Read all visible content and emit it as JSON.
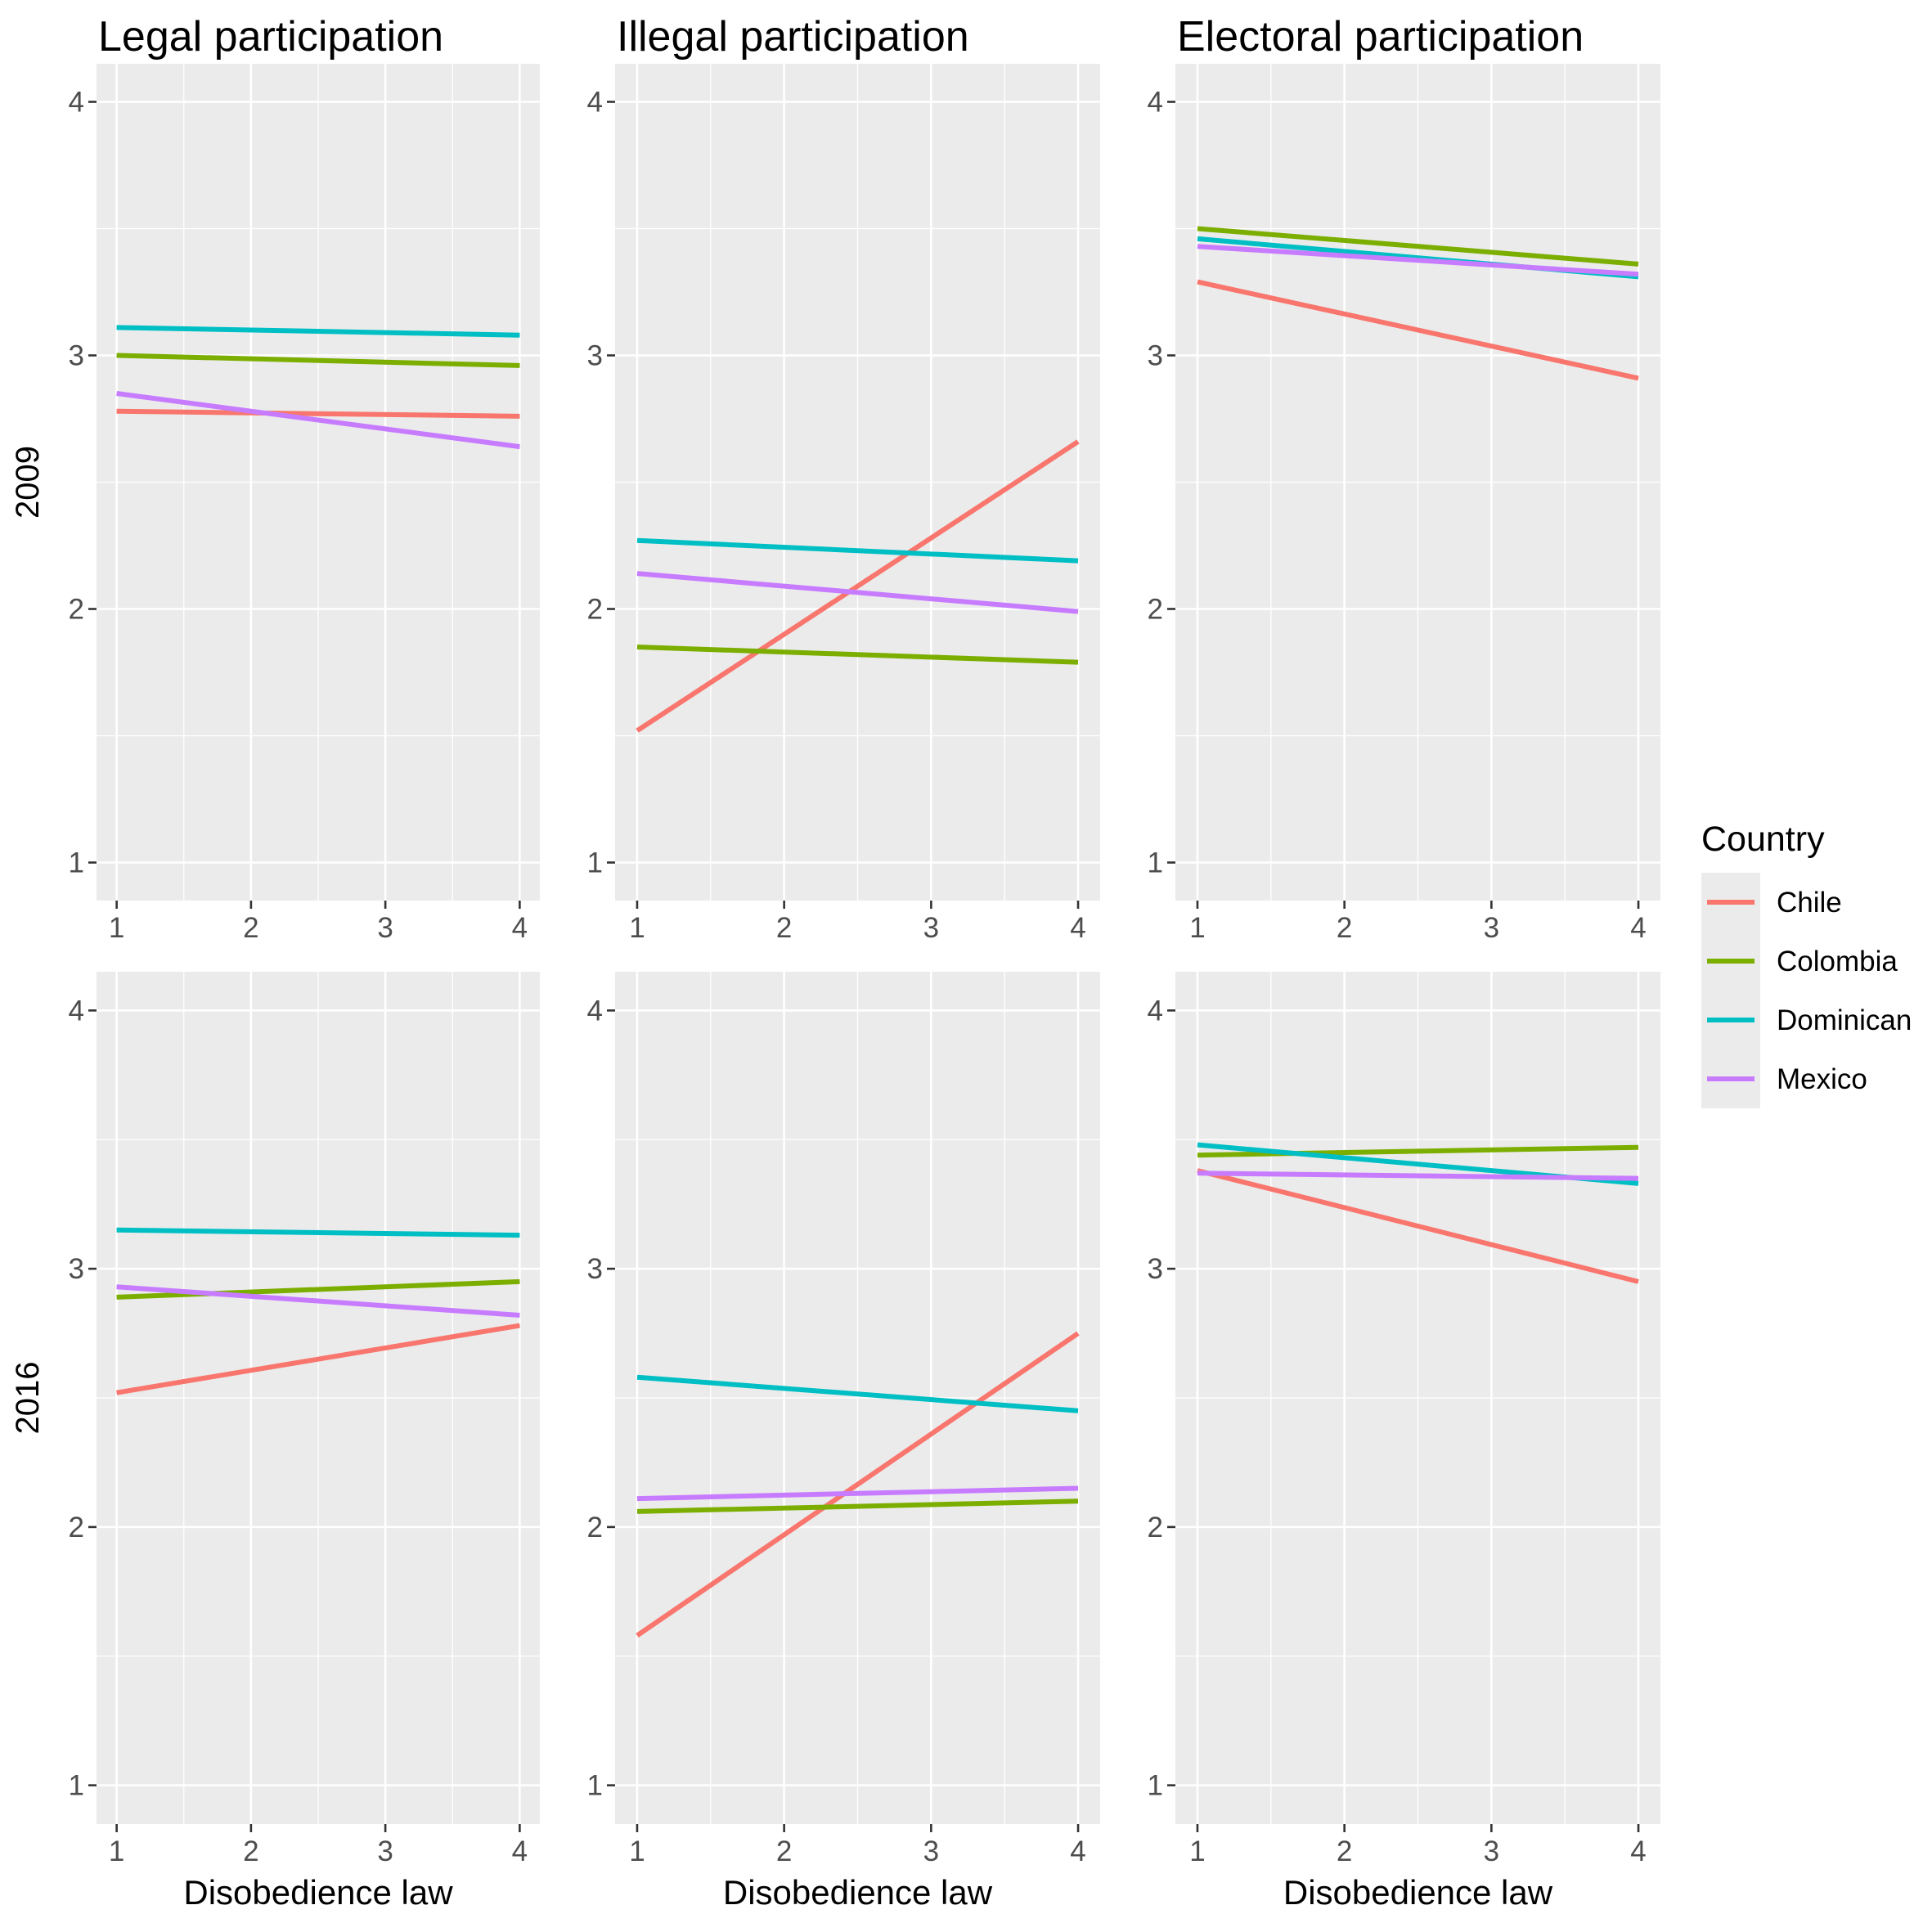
{
  "chart_data": {
    "type": "line",
    "facet_columns": [
      "Legal participation",
      "Illegal participation",
      "Electoral participation"
    ],
    "facet_rows": [
      "2009",
      "2016"
    ],
    "xlabel": "Disobedience law",
    "ylabel": "",
    "x_ticks": [
      "1",
      "2",
      "3",
      "4"
    ],
    "y_ticks": [
      "1",
      "2",
      "3",
      "4"
    ],
    "xlim": [
      0.85,
      4.15
    ],
    "ylim": [
      0.85,
      4.15
    ],
    "grid": true,
    "legend": {
      "title": "Country",
      "placement": "right",
      "items": [
        {
          "name": "Chile",
          "color": "#F8766D"
        },
        {
          "name": "Colombia",
          "color": "#7CAE00"
        },
        {
          "name": "Dominican",
          "color": "#00BFC4"
        },
        {
          "name": "Mexico",
          "color": "#C77CFF"
        }
      ]
    },
    "panels": [
      {
        "column": "Legal participation",
        "row": "2009",
        "series": [
          {
            "name": "Chile",
            "x": [
              1,
              4
            ],
            "y": [
              2.78,
              2.76
            ]
          },
          {
            "name": "Colombia",
            "x": [
              1,
              4
            ],
            "y": [
              3.0,
              2.96
            ]
          },
          {
            "name": "Dominican",
            "x": [
              1,
              4
            ],
            "y": [
              3.11,
              3.08
            ]
          },
          {
            "name": "Mexico",
            "x": [
              1,
              4
            ],
            "y": [
              2.85,
              2.64
            ]
          }
        ]
      },
      {
        "column": "Illegal participation",
        "row": "2009",
        "series": [
          {
            "name": "Chile",
            "x": [
              1,
              4
            ],
            "y": [
              1.52,
              2.66
            ]
          },
          {
            "name": "Colombia",
            "x": [
              1,
              4
            ],
            "y": [
              1.85,
              1.79
            ]
          },
          {
            "name": "Dominican",
            "x": [
              1,
              4
            ],
            "y": [
              2.27,
              2.19
            ]
          },
          {
            "name": "Mexico",
            "x": [
              1,
              4
            ],
            "y": [
              2.14,
              1.99
            ]
          }
        ]
      },
      {
        "column": "Electoral participation",
        "row": "2009",
        "series": [
          {
            "name": "Chile",
            "x": [
              1,
              4
            ],
            "y": [
              3.29,
              2.91
            ]
          },
          {
            "name": "Colombia",
            "x": [
              1,
              4
            ],
            "y": [
              3.5,
              3.36
            ]
          },
          {
            "name": "Dominican",
            "x": [
              1,
              4
            ],
            "y": [
              3.46,
              3.31
            ]
          },
          {
            "name": "Mexico",
            "x": [
              1,
              4
            ],
            "y": [
              3.43,
              3.32
            ]
          }
        ]
      },
      {
        "column": "Legal participation",
        "row": "2016",
        "series": [
          {
            "name": "Chile",
            "x": [
              1,
              4
            ],
            "y": [
              2.52,
              2.78
            ]
          },
          {
            "name": "Colombia",
            "x": [
              1,
              4
            ],
            "y": [
              2.89,
              2.95
            ]
          },
          {
            "name": "Dominican",
            "x": [
              1,
              4
            ],
            "y": [
              3.15,
              3.13
            ]
          },
          {
            "name": "Mexico",
            "x": [
              1,
              4
            ],
            "y": [
              2.93,
              2.82
            ]
          }
        ]
      },
      {
        "column": "Illegal participation",
        "row": "2016",
        "series": [
          {
            "name": "Chile",
            "x": [
              1,
              4
            ],
            "y": [
              1.58,
              2.75
            ]
          },
          {
            "name": "Colombia",
            "x": [
              1,
              4
            ],
            "y": [
              2.06,
              2.1
            ]
          },
          {
            "name": "Dominican",
            "x": [
              1,
              4
            ],
            "y": [
              2.58,
              2.45
            ]
          },
          {
            "name": "Mexico",
            "x": [
              1,
              4
            ],
            "y": [
              2.11,
              2.15
            ]
          }
        ]
      },
      {
        "column": "Electoral participation",
        "row": "2016",
        "series": [
          {
            "name": "Chile",
            "x": [
              1,
              4
            ],
            "y": [
              3.38,
              2.95
            ]
          },
          {
            "name": "Colombia",
            "x": [
              1,
              4
            ],
            "y": [
              3.44,
              3.47
            ]
          },
          {
            "name": "Dominican",
            "x": [
              1,
              4
            ],
            "y": [
              3.48,
              3.33
            ]
          },
          {
            "name": "Mexico",
            "x": [
              1,
              4
            ],
            "y": [
              3.37,
              3.35
            ]
          }
        ]
      }
    ]
  }
}
